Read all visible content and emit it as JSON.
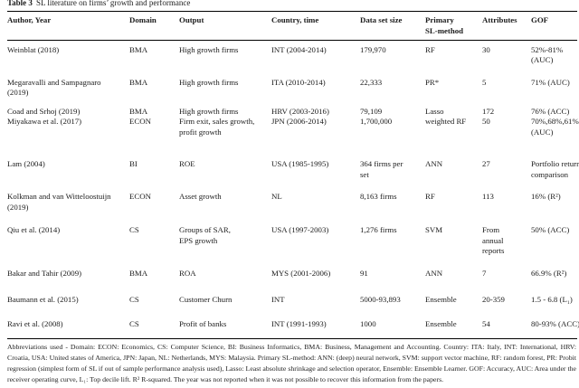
{
  "colors": {
    "background": "#ffffff",
    "text": "#1b1b1b",
    "rule": "#000000"
  },
  "caption": {
    "label": "Table 3",
    "text": "SL literature on firms’ growth and performance"
  },
  "columns": [
    "Author, Year",
    "Domain",
    "Output",
    "Country, time",
    "Data set size",
    "Primary\nSL-method",
    "Attributes",
    "GOF"
  ],
  "rows": [
    {
      "author": "Weinblat (2018)",
      "domain": "BMA",
      "output": "High growth firms",
      "country": "INT (2004-2014)",
      "size": "179,970",
      "method": "RF",
      "attributes": "30",
      "gof": "52%-81%\n(AUC)"
    },
    {
      "author": "Megaravalli and Sampagnaro\n(2019)",
      "domain": "BMA",
      "output": "High growth firms",
      "country": "ITA (2010-2014)",
      "size": "22,333",
      "method": "PR*",
      "attributes": "5",
      "gof": "71% (AUC)"
    },
    {
      "author": "Coad and Srhoj (2019)",
      "domain": "BMA",
      "output": "High growth firms",
      "country": "HRV (2003-2016)",
      "size": "79,109",
      "method": "Lasso",
      "attributes": "172",
      "gof": "76% (ACC)"
    },
    {
      "author": "Miyakawa et al. (2017)",
      "domain": "ECON",
      "output": "Firm exit, sales growth,\nprofit growth",
      "country": "JPN (2006-2014)",
      "size": "1,700,000",
      "method": "weighted RF",
      "attributes": "50",
      "gof": "70%,68%,61%\n(AUC)"
    },
    {
      "author": "Lam (2004)",
      "domain": "BI",
      "output": "ROE",
      "country": "USA (1985-1995)",
      "size": "364 firms per\nset",
      "method": "ANN",
      "attributes": "27",
      "gof": "Portfolio return\ncomparison"
    },
    {
      "author": "Kolkman and van Witteloostuijn\n(2019)",
      "domain": "ECON",
      "output": "Asset growth",
      "country": "NL",
      "size": "8,163 firms",
      "method": "RF",
      "attributes": "113",
      "gof": "16% (R²)"
    },
    {
      "author": "Qiu et al. (2014)",
      "domain": "CS",
      "output": "Groups of SAR,\nEPS growth",
      "country": "USA (1997-2003)",
      "size": "1,276 firms",
      "method": "SVM",
      "attributes": "From\nannual\nreports",
      "gof": "50% (ACC)"
    },
    {
      "author": "Bakar and Tahir (2009)",
      "domain": "BMA",
      "output": "ROA",
      "country": "MYS (2001-2006)",
      "size": "91",
      "method": "ANN",
      "attributes": "7",
      "gof": "66.9% (R²)"
    },
    {
      "author": "Baumann et al. (2015)",
      "domain": "CS",
      "output": "Customer Churn",
      "country": "INT",
      "size": "5000-93,893",
      "method": "Ensemble",
      "attributes": "20-359",
      "gof": "1.5 - 6.8 (L₁)"
    },
    {
      "author": "Ravi et al. (2008)",
      "domain": "CS",
      "output": "Profit of banks",
      "country": "INT (1991-1993)",
      "size": "1000",
      "method": "Ensemble",
      "attributes": "54",
      "gof": "80-93% (ACC)"
    }
  ],
  "footnote": "Abbreviations used - Domain: ECON: Economics, CS: Computer Science, BI: Business Informatics, BMA: Business, Management and Accounting. Country: ITA: Italy, INT: International, HRV: Croatia, USA: United states of America, JPN: Japan, NL: Netherlands, MYS: Malaysia. Primary SL-method: ANN: (deep) neural network, SVM: support vector machine, RF: random forest, PR: Probit regression (simplest form of SL if out of sample performance analysis used), Lasso: Least absolute shrinkage and selection operator, Ensemble: Ensemble Learner. GOF: Accuracy, AUC: Area under the receiver operating curve, L₁: Top decile lift. R² R-squared. The year was not reported when it was not possible to recover this information from the papers."
}
